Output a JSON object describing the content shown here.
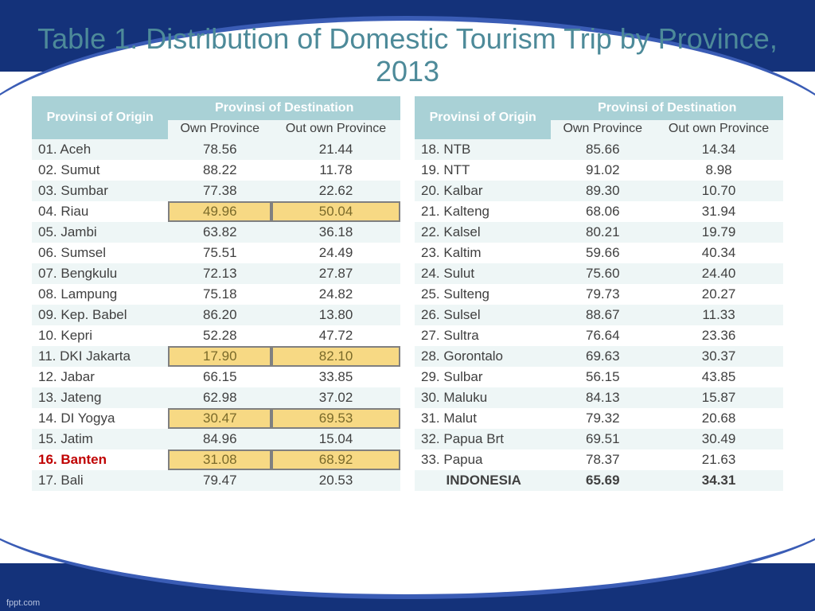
{
  "colors": {
    "title": "#4d8a99",
    "header_bg": "#a9d1d6",
    "row_odd": "#eef6f6",
    "row_even": "#ffffff",
    "highlight_bg": "#f7d984",
    "highlight_border": "#808080",
    "redname": "#c00000",
    "frame": "#14327a"
  },
  "fonts": {
    "title_size": 36,
    "cell_size": 17,
    "header_size": 16
  },
  "title": "Table 1. Distribution of Domestic Tourism Trip by Province, 2013",
  "headers": {
    "origin": "Provinsi of Origin",
    "dest": "Provinsi of Destination",
    "own": "Own Province",
    "out": "Out own Province"
  },
  "left": [
    {
      "name": "01. Aceh",
      "own": "78.56",
      "out": "21.44"
    },
    {
      "name": "02. Sumut",
      "own": "88.22",
      "out": "11.78"
    },
    {
      "name": "03. Sumbar",
      "own": "77.38",
      "out": "22.62"
    },
    {
      "name": "04. Riau",
      "own": "49.96",
      "out": "50.04",
      "hl": true
    },
    {
      "name": "05. Jambi",
      "own": "63.82",
      "out": "36.18"
    },
    {
      "name": "06. Sumsel",
      "own": "75.51",
      "out": "24.49"
    },
    {
      "name": "07. Bengkulu",
      "own": "72.13",
      "out": "27.87"
    },
    {
      "name": "08. Lampung",
      "own": "75.18",
      "out": "24.82"
    },
    {
      "name": "09. Kep. Babel",
      "own": "86.20",
      "out": "13.80"
    },
    {
      "name": "10. Kepri",
      "own": "52.28",
      "out": "47.72"
    },
    {
      "name": "11. DKI Jakarta",
      "own": "17.90",
      "out": "82.10",
      "hl": true
    },
    {
      "name": "12. Jabar",
      "own": "66.15",
      "out": "33.85"
    },
    {
      "name": "13. Jateng",
      "own": "62.98",
      "out": "37.02"
    },
    {
      "name": "14. DI Yogya",
      "own": "30.47",
      "out": "69.53",
      "hl": true
    },
    {
      "name": "15. Jatim",
      "own": "84.96",
      "out": "15.04"
    },
    {
      "name": "16. Banten",
      "own": "31.08",
      "out": "68.92",
      "hl": true,
      "red": true
    },
    {
      "name": "17. Bali",
      "own": "79.47",
      "out": "20.53"
    }
  ],
  "right": [
    {
      "name": "18. NTB",
      "own": "85.66",
      "out": "14.34"
    },
    {
      "name": "19. NTT",
      "own": "91.02",
      "out": "8.98"
    },
    {
      "name": "20. Kalbar",
      "own": "89.30",
      "out": "10.70"
    },
    {
      "name": "21. Kalteng",
      "own": "68.06",
      "out": "31.94"
    },
    {
      "name": "22. Kalsel",
      "own": "80.21",
      "out": "19.79"
    },
    {
      "name": "23. Kaltim",
      "own": "59.66",
      "out": "40.34"
    },
    {
      "name": "24. Sulut",
      "own": "75.60",
      "out": "24.40"
    },
    {
      "name": "25. Sulteng",
      "own": "79.73",
      "out": "20.27"
    },
    {
      "name": "26. Sulsel",
      "own": "88.67",
      "out": "11.33"
    },
    {
      "name": "27. Sultra",
      "own": "76.64",
      "out": "23.36"
    },
    {
      "name": "28. Gorontalo",
      "own": "69.63",
      "out": "30.37"
    },
    {
      "name": "29. Sulbar",
      "own": "56.15",
      "out": "43.85"
    },
    {
      "name": "30. Maluku",
      "own": "84.13",
      "out": "15.87"
    },
    {
      "name": "31. Malut",
      "own": "79.32",
      "out": "20.68"
    },
    {
      "name": "32. Papua Brt",
      "own": "69.51",
      "out": "30.49"
    },
    {
      "name": "33. Papua",
      "own": "78.37",
      "out": "21.63"
    },
    {
      "name": "INDONESIA",
      "own": "65.69",
      "out": "34.31",
      "total": true
    }
  ],
  "watermark": "fppt.com"
}
